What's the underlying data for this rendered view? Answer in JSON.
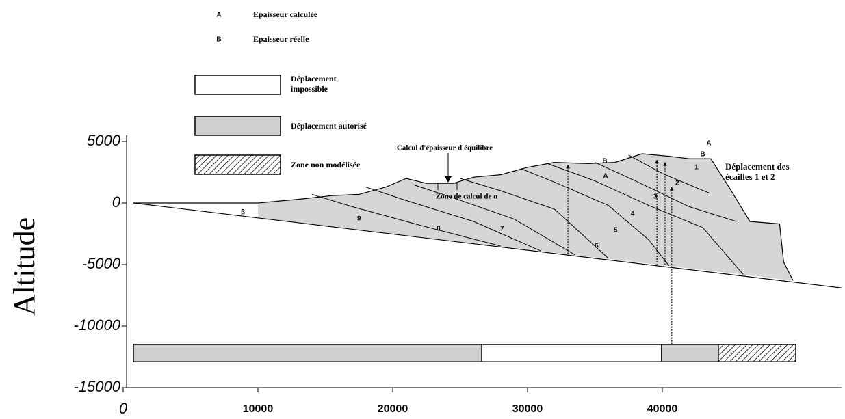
{
  "chart_data": {
    "type": "cross-section",
    "ylabel": "Altitude",
    "xlim": [
      0,
      53300
    ],
    "ylim": [
      -15000,
      5500
    ],
    "xticks": [
      0,
      10000,
      20000,
      30000,
      40000
    ],
    "yticks": [
      5000,
      0,
      -5000,
      -10000,
      -15000
    ],
    "marker_legend": [
      {
        "symbol": "A",
        "name": "Epaisseur calculée"
      },
      {
        "symbol": "B",
        "name": "Epaisseur réelle"
      }
    ],
    "zones": [
      {
        "name": "Déplacement impossible",
        "fill": "#ffffff",
        "hatched": false,
        "segments": [
          [
            26600,
            39950
          ]
        ]
      },
      {
        "name": "Déplacement autorisé",
        "fill": "#cfcfcf",
        "hatched": false,
        "segments": [
          [
            760,
            26600
          ],
          [
            39950,
            44160
          ]
        ]
      },
      {
        "name": "Zone non modélisée",
        "fill": "#ffffff",
        "hatched": true,
        "segments": [
          [
            44160,
            49900
          ]
        ]
      }
    ],
    "bar_ylim": [
      -12900,
      -11500
    ],
    "wedge_fill": "#d6d6d6",
    "surface": {
      "x": [
        760,
        10000,
        13000,
        15500,
        17500,
        19500,
        21000,
        22500,
        24500,
        26000,
        28000,
        30000,
        32000,
        34500,
        36500,
        38500,
        40500,
        42000,
        43600,
        45000,
        46500,
        48700,
        49000,
        49700
      ],
      "y": [
        0,
        0,
        300,
        600,
        700,
        1300,
        2000,
        1600,
        1600,
        2100,
        2300,
        2900,
        3300,
        3200,
        3300,
        4000,
        3800,
        3600,
        3600,
        1200,
        -1500,
        -1700,
        -4800,
        -6300
      ]
    },
    "basal": {
      "x": [
        760,
        53300
      ],
      "y": [
        0,
        -6900
      ]
    },
    "faults": [
      {
        "x": [
          14000,
          17000,
          22000,
          28000
        ],
        "y": [
          700,
          -300,
          -1800,
          -3500
        ]
      },
      {
        "x": [
          18000,
          21000,
          26000,
          31000
        ],
        "y": [
          1300,
          200,
          -1500,
          -3900
        ]
      },
      {
        "x": [
          21500,
          24000,
          29000,
          33500
        ],
        "y": [
          1500,
          600,
          -1300,
          -4200
        ]
      },
      {
        "x": [
          25000,
          28000,
          32000,
          36000
        ],
        "y": [
          2000,
          1000,
          -500,
          -4500
        ]
      },
      {
        "x": [
          29500,
          32000,
          36000,
          39000,
          40500
        ],
        "y": [
          2800,
          1700,
          -200,
          -3000,
          -5100
        ]
      },
      {
        "x": [
          31500,
          35000,
          39000,
          43000,
          46000
        ],
        "y": [
          3200,
          1800,
          -200,
          -2000,
          -5800
        ]
      },
      {
        "x": [
          35000,
          38000,
          42000,
          45500
        ],
        "y": [
          3300,
          1800,
          -300,
          -1500
        ]
      },
      {
        "x": [
          37500,
          40000,
          43500
        ],
        "y": [
          3900,
          2400,
          800
        ]
      }
    ],
    "measure_lines": [
      {
        "x": 33000,
        "y": [
          3100,
          -4300
        ]
      },
      {
        "x": 39600,
        "y": [
          3500,
          -5000
        ]
      },
      {
        "x": 40200,
        "y": [
          3300,
          -5000
        ]
      },
      {
        "x": 40700,
        "y": [
          1300,
          -11500
        ]
      }
    ],
    "sheet_labels": [
      "1",
      "2",
      "3",
      "4",
      "5",
      "6",
      "7",
      "8",
      "9"
    ],
    "angle_label": "β",
    "annotations": {
      "equilibrium": "Calcul d'épaisseur d'équilibre",
      "alpha_zone": "Zone de calcul de α",
      "displacement": "Déplacement des écailles 1 et 2"
    }
  }
}
